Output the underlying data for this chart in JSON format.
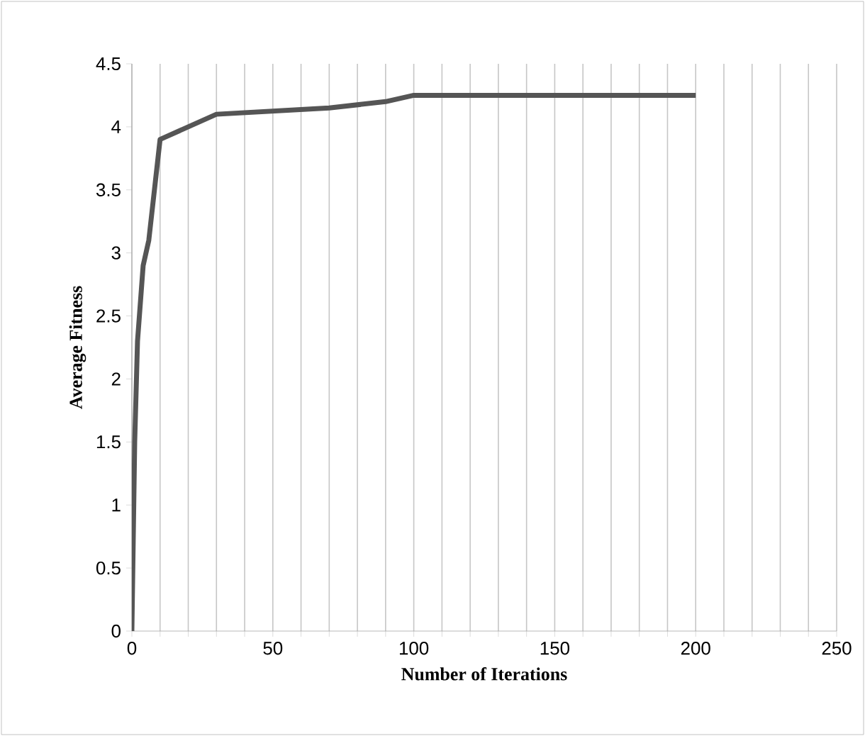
{
  "chart_data": {
    "type": "line",
    "xlabel": "Number of Iterations",
    "ylabel": "Average Fitness",
    "x": [
      0,
      1,
      2,
      4,
      6,
      10,
      30,
      70,
      90,
      100,
      200
    ],
    "series": [
      {
        "color": "#555555",
        "values": [
          0,
          1.5,
          2.3,
          2.9,
          3.1,
          3.9,
          4.1,
          4.15,
          4.2,
          4.25,
          4.25
        ]
      }
    ],
    "xlim": [
      0,
      250
    ],
    "ylim": [
      0,
      4.5
    ],
    "xticks": [
      0,
      {
        "value": 10,
        "label": null
      },
      {
        "value": 20,
        "label": null
      },
      {
        "value": 30,
        "label": null
      },
      {
        "value": 40,
        "label": null
      },
      50,
      {
        "value": 60,
        "label": null
      },
      {
        "value": 70,
        "label": null
      },
      {
        "value": 80,
        "label": null
      },
      {
        "value": 90,
        "label": null
      },
      100,
      {
        "value": 110,
        "label": null
      },
      {
        "value": 120,
        "label": null
      },
      {
        "value": 130,
        "label": null
      },
      {
        "value": 140,
        "label": null
      },
      150,
      {
        "value": 160,
        "label": null
      },
      {
        "value": 170,
        "label": null
      },
      {
        "value": 180,
        "label": null
      },
      {
        "value": 190,
        "label": null
      },
      200,
      {
        "value": 210,
        "label": null
      },
      {
        "value": 220,
        "label": null
      },
      {
        "value": 230,
        "label": null
      },
      {
        "value": 240,
        "label": null
      },
      250
    ],
    "yticks": [
      0,
      0.5,
      1,
      1.5,
      2,
      2.5,
      3,
      3.5,
      4,
      4.5
    ],
    "grid": "x",
    "marker": "none",
    "line_style": "solid"
  }
}
